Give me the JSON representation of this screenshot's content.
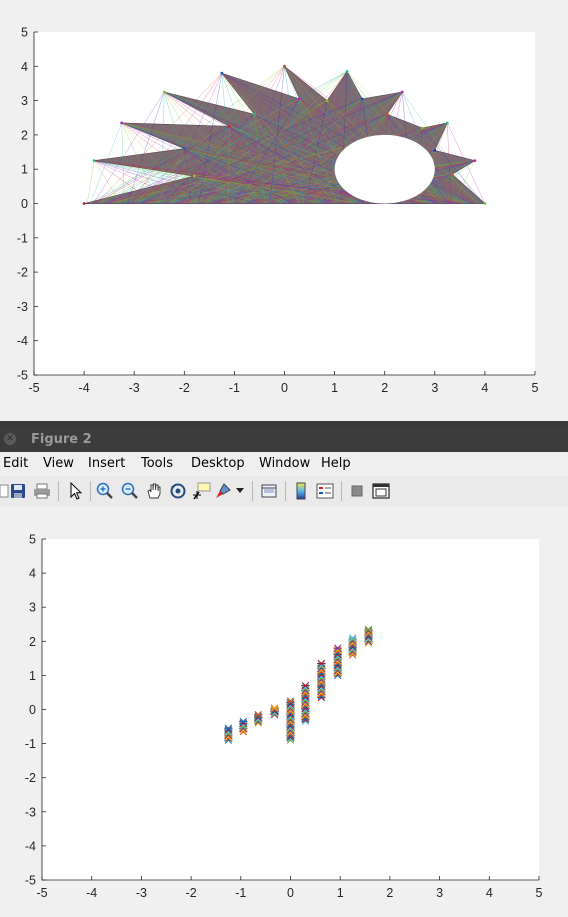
{
  "figure1": {
    "chart_data": {
      "type": "area",
      "xlim": [
        -5,
        5
      ],
      "ylim": [
        -5,
        5
      ],
      "xticks": [
        -5,
        -4,
        -3,
        -2,
        -1,
        0,
        1,
        2,
        3,
        4,
        5
      ],
      "yticks": [
        -5,
        -4,
        -3,
        -2,
        -1,
        0,
        1,
        2,
        3,
        4,
        5
      ],
      "polygon": [
        [
          -4,
          0
        ],
        [
          -1.8,
          0.8
        ],
        [
          -3.8,
          1.25
        ],
        [
          -2.0,
          1.6
        ],
        [
          -3.25,
          2.35
        ],
        [
          -1.1,
          2.25
        ],
        [
          -2.4,
          3.25
        ],
        [
          -0.6,
          2.6
        ],
        [
          -1.25,
          3.8
        ],
        [
          0.3,
          3.05
        ],
        [
          0,
          4
        ],
        [
          0.85,
          3.0
        ],
        [
          1.25,
          3.85
        ],
        [
          1.55,
          3.05
        ],
        [
          2.35,
          3.25
        ],
        [
          2.05,
          2.6
        ],
        [
          2.75,
          2.2
        ],
        [
          3.25,
          2.35
        ],
        [
          3.0,
          1.55
        ],
        [
          3.8,
          1.25
        ],
        [
          3.35,
          0.85
        ],
        [
          4,
          0
        ]
      ],
      "hole": {
        "cx": 2,
        "cy": 1,
        "rx": 1,
        "ry": 1
      },
      "grid": false
    }
  },
  "window2": {
    "title": "Figure 2",
    "close_icon": "circle-close-icon",
    "menu": [
      "Edit",
      "View",
      "Insert",
      "Tools",
      "Desktop",
      "Window",
      "Help"
    ],
    "toolbar_icons": [
      "save-icon",
      "print-icon",
      "pointer-icon",
      "zoom-in-icon",
      "zoom-out-icon",
      "pan-icon",
      "rotate-icon",
      "data-cursor-icon",
      "brush-icon",
      "link-icon",
      "colorbar-icon",
      "legend-icon",
      "hide-tools-icon",
      "dock-icon"
    ]
  },
  "figure2": {
    "chart_data": {
      "type": "scatter",
      "xlim": [
        -5,
        5
      ],
      "ylim": [
        -5,
        5
      ],
      "xticks": [
        -5,
        -4,
        -3,
        -2,
        -1,
        0,
        1,
        2,
        3,
        4,
        5
      ],
      "yticks": [
        -5,
        -4,
        -3,
        -2,
        -1,
        0,
        1,
        2,
        3,
        4,
        5
      ],
      "grid": false,
      "columns": [
        {
          "x": -1.25,
          "y_from": -0.9,
          "y_to": -0.55
        },
        {
          "x": -0.95,
          "y_from": -0.65,
          "y_to": -0.35
        },
        {
          "x": -0.65,
          "y_from": -0.4,
          "y_to": -0.15
        },
        {
          "x": -0.32,
          "y_from": -0.15,
          "y_to": 0.05
        },
        {
          "x": 0.0,
          "y_from": -0.9,
          "y_to": 0.25
        },
        {
          "x": 0.3,
          "y_from": -0.35,
          "y_to": 0.7
        },
        {
          "x": 0.62,
          "y_from": 0.35,
          "y_to": 1.35
        },
        {
          "x": 0.95,
          "y_from": 1.0,
          "y_to": 1.8
        },
        {
          "x": 1.25,
          "y_from": 1.6,
          "y_to": 2.1
        },
        {
          "x": 1.57,
          "y_from": 1.95,
          "y_to": 2.35
        }
      ]
    }
  }
}
